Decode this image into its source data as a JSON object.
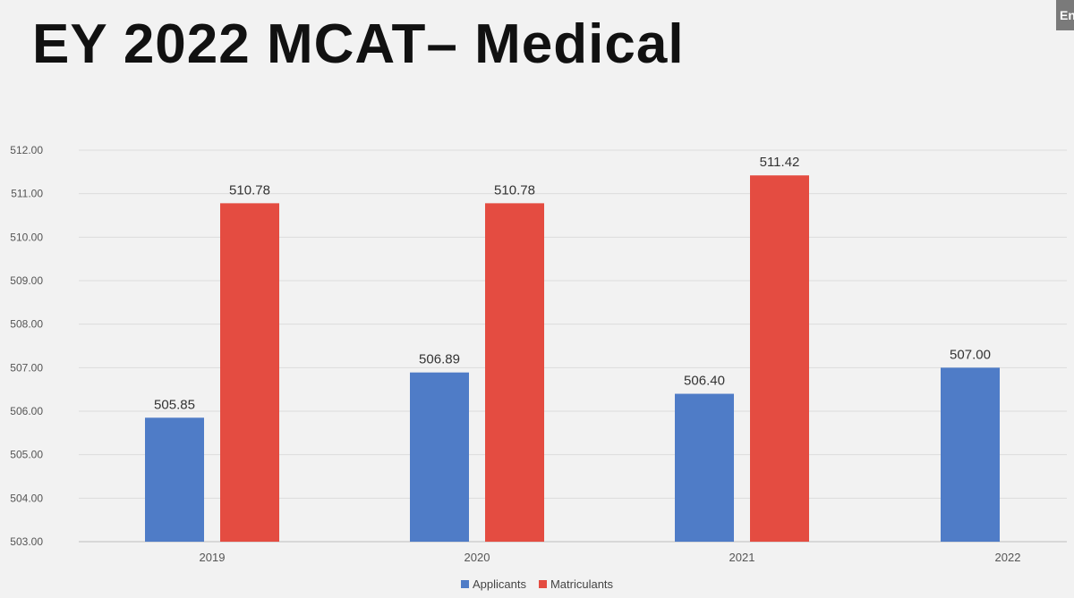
{
  "slide": {
    "title": "EY 2022 MCAT– Medical",
    "corner_badge": "En"
  },
  "chart_data": {
    "type": "bar",
    "title": "",
    "xlabel": "",
    "ylabel": "",
    "categories": [
      "2019",
      "2020",
      "2021",
      "2022"
    ],
    "series": [
      {
        "name": "Applicants",
        "color": "#4f7cc7",
        "values": [
          505.85,
          506.89,
          506.4,
          507.0
        ]
      },
      {
        "name": "Matriculants",
        "color": "#e44c41",
        "values": [
          510.78,
          510.78,
          511.42,
          null
        ]
      }
    ],
    "ylim": [
      503,
      512
    ],
    "yticks": [
      "503.00",
      "504.00",
      "505.00",
      "506.00",
      "507.00",
      "508.00",
      "509.00",
      "510.00",
      "511.00",
      "512.00"
    ],
    "data_labels": [
      [
        "505.85",
        "506.89",
        "506.40",
        "507.00"
      ],
      [
        "510.78",
        "510.78",
        "511.42",
        ""
      ]
    ],
    "grid": true,
    "legend_position": "bottom-center"
  }
}
